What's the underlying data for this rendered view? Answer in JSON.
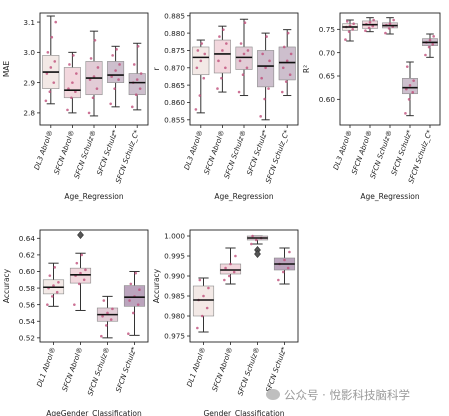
{
  "palette": {
    "DL3": "#f3e9e6",
    "SFCN Abrol": "#f2d7dd",
    "SFCN Schulz": "#e2ccd6",
    "SFCN Schulz_C": "#cdbfcd",
    "SFCN Schulz_star": "#bba4bd",
    "dot": "#bf4f7a",
    "line": "#333333"
  },
  "chart_data": [
    {
      "id": "mae",
      "type": "box",
      "ylabel": "MAE",
      "xlabel": "Age_Regression",
      "log": false,
      "ylim": [
        2.76,
        3.13
      ],
      "yticks": [
        2.8,
        2.9,
        3.0,
        3.1
      ],
      "categories": [
        "DL3 Abrol®",
        "SFCN Abrol®",
        "SFCN Schulz®",
        "SFCN Schulz*",
        "SFCN Schulz_C*"
      ],
      "colors": [
        "DL3",
        "SFCN Abrol",
        "SFCN Schulz",
        "SFCN Schulz_C",
        "SFCN Schulz_C"
      ],
      "boxes": [
        {
          "min": 2.83,
          "q1": 2.88,
          "median": 2.935,
          "q3": 2.99,
          "max": 3.12
        },
        {
          "min": 2.8,
          "q1": 2.85,
          "median": 2.875,
          "q3": 2.95,
          "max": 3.0
        },
        {
          "min": 2.79,
          "q1": 2.86,
          "median": 2.915,
          "q3": 2.97,
          "max": 3.07
        },
        {
          "min": 2.82,
          "q1": 2.9,
          "median": 2.925,
          "q3": 2.97,
          "max": 3.02
        },
        {
          "min": 2.81,
          "q1": 2.86,
          "median": 2.9,
          "q3": 2.93,
          "max": 3.03
        }
      ],
      "outliers": [
        [],
        [],
        [],
        [],
        []
      ],
      "points": [
        [
          2.84,
          2.87,
          2.9,
          2.93,
          2.95,
          2.97,
          3.0,
          3.05,
          3.1
        ],
        [
          2.81,
          2.85,
          2.87,
          2.88,
          2.9,
          2.93,
          2.96,
          2.99
        ],
        [
          2.8,
          2.85,
          2.88,
          2.91,
          2.92,
          2.95,
          2.98,
          3.04
        ],
        [
          2.83,
          2.88,
          2.91,
          2.92,
          2.94,
          2.96,
          2.99,
          3.01
        ],
        [
          2.82,
          2.86,
          2.88,
          2.9,
          2.91,
          2.93,
          2.96,
          3.02
        ]
      ]
    },
    {
      "id": "r",
      "type": "box",
      "ylabel": "r",
      "xlabel": "Age_Regression",
      "log": false,
      "ylim": [
        0.8535,
        0.8858
      ],
      "yticks": [
        0.855,
        0.86,
        0.865,
        0.87,
        0.875,
        0.88,
        0.885
      ],
      "yticklabels": [
        "0.855",
        "0.860",
        "0.865",
        "0.870",
        "0.875",
        "0.880",
        "0.885"
      ],
      "categories": [
        "DL3 Abrol®",
        "SFCN Abrol®",
        "SFCN Schulz®",
        "SFCN Schulz*",
        "SFCN Schulz_C*"
      ],
      "colors": [
        "DL3",
        "SFCN Abrol",
        "SFCN Schulz",
        "SFCN Schulz_C",
        "SFCN Schulz_C"
      ],
      "boxes": [
        {
          "min": 0.857,
          "q1": 0.868,
          "median": 0.873,
          "q3": 0.876,
          "max": 0.878
        },
        {
          "min": 0.863,
          "q1": 0.8685,
          "median": 0.874,
          "q3": 0.878,
          "max": 0.882
        },
        {
          "min": 0.862,
          "q1": 0.8695,
          "median": 0.873,
          "q3": 0.876,
          "max": 0.884
        },
        {
          "min": 0.855,
          "q1": 0.8645,
          "median": 0.8705,
          "q3": 0.875,
          "max": 0.88
        },
        {
          "min": 0.862,
          "q1": 0.8665,
          "median": 0.8715,
          "q3": 0.876,
          "max": 0.881
        }
      ],
      "outliers": [
        [],
        [],
        [],
        [],
        []
      ],
      "points": [
        [
          0.858,
          0.862,
          0.867,
          0.87,
          0.872,
          0.874,
          0.875,
          0.877
        ],
        [
          0.864,
          0.867,
          0.87,
          0.872,
          0.875,
          0.877,
          0.879,
          0.881
        ],
        [
          0.863,
          0.868,
          0.87,
          0.872,
          0.874,
          0.875,
          0.877,
          0.883
        ],
        [
          0.856,
          0.861,
          0.864,
          0.867,
          0.87,
          0.872,
          0.874,
          0.879
        ],
        [
          0.863,
          0.866,
          0.868,
          0.87,
          0.872,
          0.874,
          0.876,
          0.88
        ]
      ]
    },
    {
      "id": "r2",
      "type": "box",
      "ylabel": "R²",
      "xlabel": "Age_Regression",
      "log": false,
      "ylim": [
        0.545,
        0.785
      ],
      "yticks": [
        0.6,
        0.65,
        0.7,
        0.75
      ],
      "yticklabels": [
        "0.60",
        "0.65",
        "0.70",
        "0.75"
      ],
      "categories": [
        "DL3 Abrol®",
        "SFCN Abrol®",
        "SFCN Schulz®",
        "SFCN Schulz*",
        "SFCN Schulz_C*"
      ],
      "colors": [
        "DL3",
        "SFCN Abrol",
        "SFCN Schulz",
        "SFCN Schulz_C",
        "SFCN Schulz_C"
      ],
      "boxes": [
        {
          "min": 0.725,
          "q1": 0.748,
          "median": 0.755,
          "q3": 0.762,
          "max": 0.77
        },
        {
          "min": 0.745,
          "q1": 0.752,
          "median": 0.76,
          "q3": 0.768,
          "max": 0.775
        },
        {
          "min": 0.74,
          "q1": 0.753,
          "median": 0.758,
          "q3": 0.764,
          "max": 0.775
        },
        {
          "min": 0.565,
          "q1": 0.612,
          "median": 0.625,
          "q3": 0.645,
          "max": 0.68
        },
        {
          "min": 0.69,
          "q1": 0.715,
          "median": 0.722,
          "q3": 0.73,
          "max": 0.74
        }
      ],
      "outliers": [
        [],
        [],
        [],
        [],
        []
      ],
      "points": [
        [
          0.728,
          0.745,
          0.75,
          0.755,
          0.758,
          0.762,
          0.767
        ],
        [
          0.747,
          0.753,
          0.757,
          0.761,
          0.765,
          0.77
        ],
        [
          0.742,
          0.752,
          0.756,
          0.759,
          0.762,
          0.77
        ],
        [
          0.57,
          0.6,
          0.615,
          0.622,
          0.63,
          0.64,
          0.67
        ],
        [
          0.695,
          0.712,
          0.718,
          0.722,
          0.727,
          0.735
        ]
      ]
    },
    {
      "id": "acc-agegender",
      "type": "box",
      "ylabel": "Accuracy",
      "xlabel": "AgeGender_Classification",
      "log": false,
      "ylim": [
        0.515,
        0.65
      ],
      "yticks": [
        0.52,
        0.54,
        0.56,
        0.58,
        0.6,
        0.62,
        0.64
      ],
      "yticklabels": [
        "0.52",
        "0.54",
        "0.56",
        "0.58",
        "0.60",
        "0.62",
        "0.64"
      ],
      "categories": [
        "DL1 Abrol®",
        "SFCN Abrol®",
        "SFCN Schulz®",
        "SFCN Schulz*"
      ],
      "colors": [
        "DL3",
        "SFCN Abrol",
        "SFCN Schulz",
        "SFCN Schulz_star"
      ],
      "boxes": [
        {
          "min": 0.558,
          "q1": 0.573,
          "median": 0.581,
          "q3": 0.59,
          "max": 0.61
        },
        {
          "min": 0.553,
          "q1": 0.586,
          "median": 0.596,
          "q3": 0.604,
          "max": 0.622
        },
        {
          "min": 0.52,
          "q1": 0.54,
          "median": 0.548,
          "q3": 0.556,
          "max": 0.57
        },
        {
          "min": 0.523,
          "q1": 0.558,
          "median": 0.569,
          "q3": 0.583,
          "max": 0.6
        }
      ],
      "outliers": [
        [],
        [
          0.644
        ],
        [],
        []
      ],
      "points": [
        [
          0.56,
          0.57,
          0.575,
          0.58,
          0.583,
          0.587,
          0.595,
          0.605
        ],
        [
          0.56,
          0.585,
          0.59,
          0.595,
          0.598,
          0.602,
          0.61,
          0.62
        ],
        [
          0.522,
          0.535,
          0.542,
          0.546,
          0.55,
          0.555,
          0.565
        ],
        [
          0.525,
          0.55,
          0.56,
          0.565,
          0.57,
          0.578,
          0.585,
          0.598
        ]
      ]
    },
    {
      "id": "acc-gender",
      "type": "box",
      "ylabel": "Accuracy",
      "xlabel": "Gender_Classification",
      "log": false,
      "ylim": [
        0.9735,
        1.0015
      ],
      "yticks": [
        0.975,
        0.98,
        0.985,
        0.99,
        0.995,
        1.0
      ],
      "yticklabels": [
        "0.975",
        "0.980",
        "0.985",
        "0.990",
        "0.995",
        "1.000"
      ],
      "categories": [
        "DL1 Abrol®",
        "SFCN Abrol®",
        "SFCN Schulz®",
        "SFCN Schulz*"
      ],
      "colors": [
        "DL3",
        "SFCN Abrol",
        "SFCN Schulz",
        "SFCN Schulz_star"
      ],
      "boxes": [
        {
          "min": 0.976,
          "q1": 0.98,
          "median": 0.984,
          "q3": 0.9875,
          "max": 0.9895
        },
        {
          "min": 0.988,
          "q1": 0.9905,
          "median": 0.9915,
          "q3": 0.993,
          "max": 0.997
        },
        {
          "min": 0.998,
          "q1": 0.999,
          "median": 0.9995,
          "q3": 1.0,
          "max": 1.0
        },
        {
          "min": 0.988,
          "q1": 0.9915,
          "median": 0.993,
          "q3": 0.9945,
          "max": 0.997
        }
      ],
      "outliers": [
        [],
        [],
        [
          0.9965,
          0.9955
        ],
        []
      ],
      "points": [
        [
          0.977,
          0.98,
          0.982,
          0.984,
          0.985,
          0.987,
          0.989
        ],
        [
          0.989,
          0.99,
          0.991,
          0.992,
          0.993,
          0.995
        ],
        [
          0.998,
          0.999,
          0.9995,
          1.0
        ],
        [
          0.989,
          0.991,
          0.992,
          0.993,
          0.994,
          0.996
        ]
      ]
    }
  ],
  "watermark": "公众号 · 悅影科技脑科学"
}
